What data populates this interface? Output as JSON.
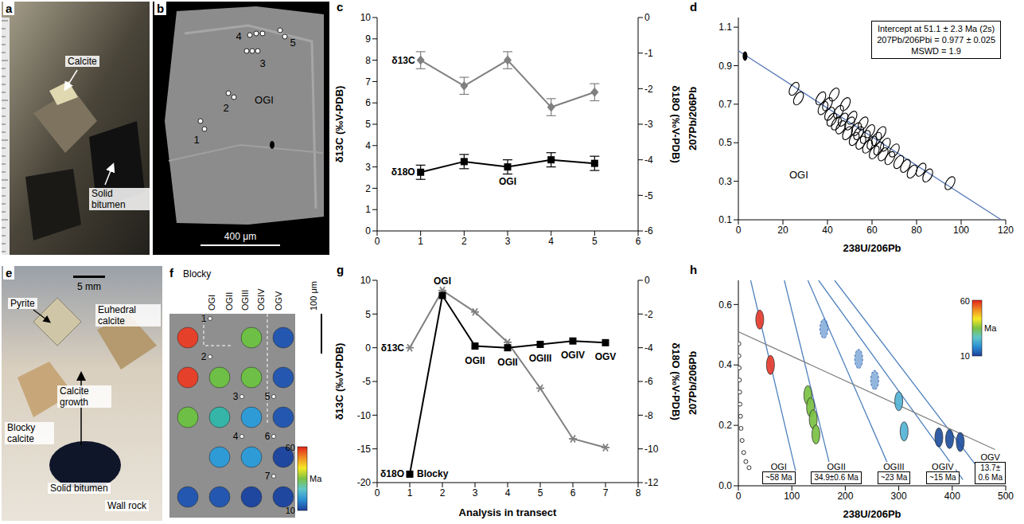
{
  "chart_data": [
    {
      "panel": "c",
      "type": "line",
      "x": [
        1,
        2,
        3,
        4,
        5
      ],
      "xlim": [
        0,
        6
      ],
      "xticks": [
        0,
        1,
        2,
        3,
        4,
        5,
        6
      ],
      "ylim": [
        0,
        10
      ],
      "yticks": [
        0,
        1,
        2,
        3,
        4,
        5,
        6,
        7,
        8,
        9,
        10
      ],
      "y2lim": [
        -6,
        0
      ],
      "y2ticks": [
        -6,
        -5,
        -4,
        -3,
        -2,
        -1,
        0
      ],
      "ylabel": "δ13C (‰V-PDB)",
      "y2label": "δ18O (‰V-PDB)",
      "grid": false,
      "series": [
        {
          "name": "δ13C",
          "color": "#808080",
          "marker": "diamond",
          "values": [
            8.0,
            6.8,
            8.0,
            5.8,
            6.5
          ],
          "errors": [
            0.4,
            0.4,
            0.4,
            0.4,
            0.4
          ]
        },
        {
          "name": "δ18O",
          "color": "#000000",
          "marker": "square",
          "axis": "y2",
          "values": [
            -4.35,
            -4.05,
            -4.2,
            -4.0,
            -4.1
          ],
          "errors": [
            0.2,
            0.2,
            0.2,
            0.2,
            0.2
          ],
          "point_labels": [
            null,
            null,
            "OGI",
            null,
            null
          ]
        }
      ]
    },
    {
      "panel": "d",
      "type": "scatter",
      "xlim": [
        0,
        120
      ],
      "xticks": [
        0,
        20,
        40,
        60,
        80,
        100,
        120
      ],
      "ylim": [
        0.1,
        1.15
      ],
      "yticks": [
        0.1,
        0.3,
        0.5,
        0.7,
        0.9,
        1.1
      ],
      "xlabel": "238U/206Pb",
      "ylabel": "207Pb/206Pb",
      "grid": false,
      "annotation": [
        "Intercept at 51.1 ± 2.3 Ma (2s)",
        "207Pb/206Pbi = 0.977 ± 0.025",
        "MSWD = 1.9"
      ],
      "text_labels": [
        "OGI"
      ],
      "series": [
        {
          "type": "line",
          "color": "#5b7db8",
          "x": [
            0,
            118
          ],
          "values": [
            0.977,
            0.1
          ]
        },
        {
          "type": "scatter",
          "color": "#000000",
          "marker": "ellipse",
          "x": [
            25,
            27,
            37,
            38,
            40,
            41,
            42,
            43,
            44,
            45,
            46,
            47,
            48,
            49,
            50,
            51,
            52,
            53,
            54,
            55,
            56,
            57,
            58,
            59,
            60,
            61,
            62,
            63,
            64,
            65,
            66,
            68,
            70,
            72,
            75,
            78,
            82,
            85,
            95
          ],
          "values": [
            0.78,
            0.73,
            0.73,
            0.68,
            0.7,
            0.65,
            0.62,
            0.75,
            0.6,
            0.66,
            0.58,
            0.62,
            0.7,
            0.55,
            0.6,
            0.63,
            0.52,
            0.57,
            0.55,
            0.5,
            0.6,
            0.53,
            0.48,
            0.56,
            0.5,
            0.45,
            0.52,
            0.47,
            0.55,
            0.44,
            0.49,
            0.42,
            0.46,
            0.4,
            0.38,
            0.35,
            0.36,
            0.33,
            0.29
          ]
        },
        {
          "type": "scatter",
          "color": "#000000",
          "marker": "filled_ellipse",
          "x": [
            3
          ],
          "values": [
            0.95
          ]
        }
      ]
    },
    {
      "panel": "g",
      "type": "line",
      "x": [
        1,
        2,
        3,
        4,
        5,
        6,
        7
      ],
      "xlim": [
        0,
        8
      ],
      "xticks": [
        0,
        1,
        2,
        3,
        4,
        5,
        6,
        7,
        8
      ],
      "xlabel": "Analysis in transect",
      "ylim": [
        -20,
        10
      ],
      "yticks": [
        -20,
        -15,
        -10,
        -5,
        0,
        5,
        10
      ],
      "y2lim": [
        -12,
        0
      ],
      "y2ticks": [
        -12,
        -10,
        -8,
        -6,
        -4,
        -2,
        0
      ],
      "ylabel": "δ13C (‰V-PDB)",
      "y2label": "δ18O (‰V-PDB)",
      "grid": false,
      "series": [
        {
          "name": "δ13C",
          "color": "#808080",
          "marker": "star",
          "values": [
            0,
            8.5,
            5.3,
            0.8,
            -6,
            -13.5,
            -14.8
          ]
        },
        {
          "name": "δ18O",
          "color": "#000000",
          "marker": "square",
          "axis": "y2",
          "values": [
            -11.5,
            -0.9,
            -3.9,
            -4.0,
            -3.8,
            -3.6,
            -3.7
          ],
          "point_labels": [
            "Blocky",
            "OGI",
            "OGII",
            "OGII",
            "OGIII",
            "OGIV",
            "OGV"
          ]
        }
      ]
    },
    {
      "panel": "h",
      "type": "scatter",
      "xlim": [
        0,
        500
      ],
      "xticks": [
        0,
        100,
        200,
        300,
        400,
        500
      ],
      "ylim": [
        0,
        0.68
      ],
      "yticks": [
        {
          "value": 0,
          "label": "0.0"
        },
        0.2,
        0.4,
        0.6
      ],
      "xlabel": "238U/206Pb",
      "ylabel": "207Pb/206Pb",
      "grid": false,
      "colorbar": {
        "range": [
          10,
          60
        ],
        "ticks": [
          10,
          60
        ],
        "label": "Ma",
        "colors": [
          "#1f3f9a",
          "#2a8fd4",
          "#5fc6c9",
          "#7cc242",
          "#f6e925",
          "#f08a24",
          "#e2231a"
        ]
      },
      "series": [
        {
          "type": "scatter",
          "color": "#000000",
          "marker": "circle",
          "x": [
            1,
            1,
            1.5,
            2,
            2.5,
            3,
            4,
            5,
            7,
            10,
            14,
            20
          ],
          "values": [
            0.47,
            0.43,
            0.39,
            0.35,
            0.31,
            0.27,
            0.23,
            0.19,
            0.15,
            0.11,
            0.08,
            0.06
          ]
        },
        {
          "type": "line",
          "color": "#4f81bd",
          "x": [
            23,
            107
          ],
          "values": [
            0.68,
            0.05
          ]
        },
        {
          "type": "line",
          "color": "#4f81bd",
          "x": [
            86,
            175
          ],
          "values": [
            0.68,
            0.04
          ]
        },
        {
          "type": "line",
          "color": "#4f81bd",
          "x": [
            130,
            290
          ],
          "values": [
            0.68,
            0.03
          ]
        },
        {
          "type": "line",
          "color": "#4f81bd",
          "x": [
            150,
            420
          ],
          "values": [
            0.68,
            0.02
          ]
        },
        {
          "type": "line",
          "color": "#4f81bd",
          "x": [
            180,
            465
          ],
          "values": [
            0.68,
            0.02
          ]
        },
        {
          "type": "line",
          "color": "#808080",
          "x": [
            0,
            480
          ],
          "values": [
            0.51,
            0.12
          ]
        },
        {
          "type": "scatter",
          "name": "OGI",
          "age_label": "~58 Ma",
          "color": "#e63b2e",
          "marker": "color_ellipse",
          "x": [
            40,
            60
          ],
          "values": [
            0.55,
            0.4
          ]
        },
        {
          "type": "scatter",
          "name": "OGII",
          "age_label": "34.9±0.6 Ma",
          "color": "#7ac143",
          "marker": "color_ellipse",
          "x": [
            130,
            135,
            140,
            145
          ],
          "values": [
            0.3,
            0.26,
            0.22,
            0.17
          ]
        },
        {
          "type": "scatter",
          "name": "OGIII",
          "age_label": "~23 Ma",
          "color": "#54b3d6",
          "marker": "color_ellipse",
          "x": [
            300,
            310
          ],
          "values": [
            0.28,
            0.18
          ]
        },
        {
          "type": "scatter",
          "name": "OGIV",
          "age_label": "~15 Ma",
          "color": "#4a86c8",
          "marker": "color_ellipse",
          "line_style": "dashed",
          "x": [
            160,
            225,
            255
          ],
          "values": [
            0.52,
            0.42,
            0.35
          ]
        },
        {
          "type": "scatter",
          "name": "OGV",
          "age_label": "13.7±0.6 Ma",
          "color": "#1f4f9e",
          "marker": "color_ellipse",
          "x": [
            375,
            395,
            415
          ],
          "values": [
            0.16,
            0.155,
            0.145
          ]
        }
      ]
    }
  ],
  "images": [
    {
      "panel": "a",
      "labels": [
        "Calcite",
        "Solid bitumen"
      ]
    },
    {
      "panel": "b",
      "labels": [
        "OGI"
      ],
      "spots": [
        1,
        2,
        3,
        4,
        5
      ],
      "scale_bar": "400 μm"
    },
    {
      "panel": "e",
      "labels": [
        "Pyrite",
        "Euhedral calcite",
        "Calcite growth",
        "Blocky calcite",
        "Solid bitumen",
        "Wall rock"
      ],
      "scale_bar": "5 mm"
    },
    {
      "panel": "f",
      "labels": [
        "Blocky",
        "OGI",
        "OGII",
        "OGIII",
        "OGIV",
        "OGV"
      ],
      "spots": [
        1,
        2,
        3,
        4,
        5,
        6,
        7
      ],
      "scale_bar": "100 μm",
      "spot_colors": [
        "#e5402a",
        null,
        "#6dbf45",
        "#2458b0",
        "#e5402a",
        "#6dbf45",
        "#6dbf45",
        "#2458b0",
        "#6dbf45",
        "#35b5a8",
        "#2f9bd6",
        "#2458b0",
        null,
        "#2f9bd6",
        "#2f9bd6",
        "#1f47a0",
        "#2458b0",
        "#2458b0",
        "#1f47a0",
        "#1f47a0"
      ],
      "colorbar": {
        "range": [
          10,
          60
        ],
        "ticks": [
          10,
          60
        ],
        "label": "Ma",
        "colors": [
          "#1f3f9a",
          "#2a8fd4",
          "#5fc6c9",
          "#7cc242",
          "#f6e925",
          "#f08a24",
          "#e2231a"
        ]
      }
    }
  ]
}
